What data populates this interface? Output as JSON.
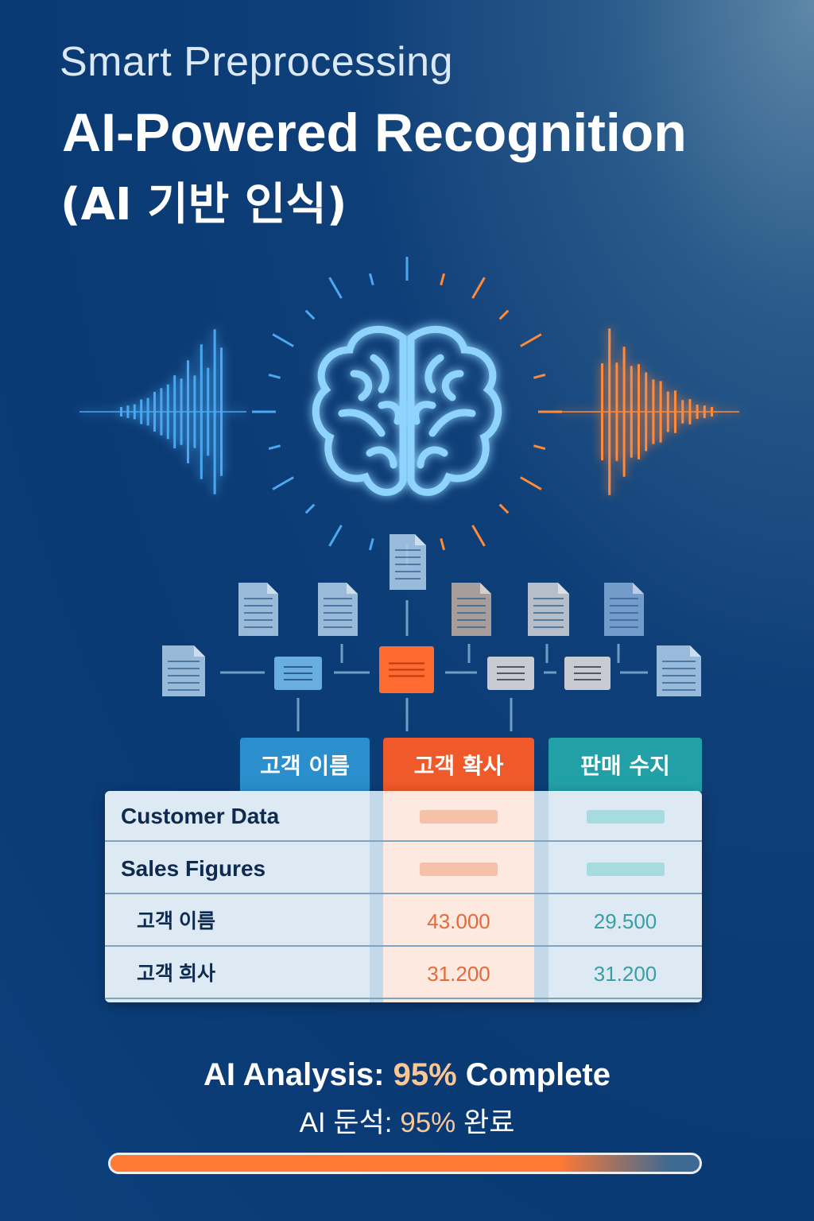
{
  "header": {
    "subtitle": "Smart Preprocessing",
    "title": "AI-Powered Recognition",
    "title_ko": "(AI 기반 인식)"
  },
  "icons": [
    "brain-icon",
    "waveform-icon",
    "document-icon"
  ],
  "colors": {
    "blue": "#2a8fcc",
    "orange": "#f0592a",
    "teal": "#22a0a8",
    "accent": "#ff7a34",
    "highlight": "#f9c894"
  },
  "table": {
    "headers": [
      "고객 이름",
      "고객 확사",
      "판매 수지"
    ],
    "rows": [
      {
        "label": "Customer Data",
        "values": [
          "",
          ""
        ]
      },
      {
        "label": "Sales Figures",
        "values": [
          "",
          ""
        ]
      },
      {
        "label": "고객 이름",
        "values": [
          "43.000",
          "29.500"
        ]
      },
      {
        "label": "고객 희사",
        "values": [
          "31.200",
          "31.200"
        ]
      }
    ]
  },
  "analysis": {
    "prefix": "AI Analysis: ",
    "percent_text": "95%",
    "suffix": " Complete",
    "ko_prefix": "AI 둔석: ",
    "ko_percent": "95%",
    "ko_suffix": " 완료",
    "progress": 0.95
  }
}
